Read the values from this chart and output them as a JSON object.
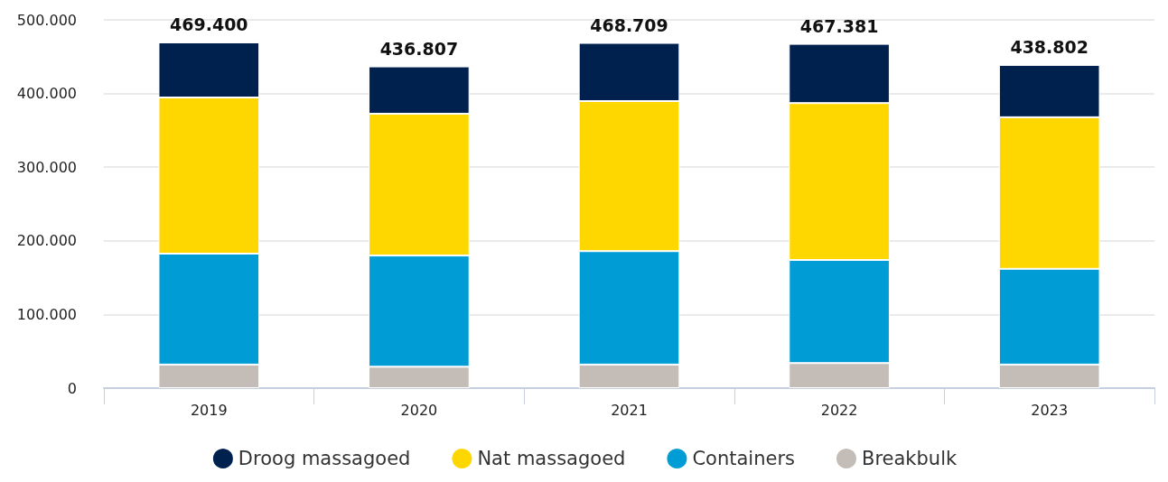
{
  "chart_data": {
    "type": "bar",
    "stacked": true,
    "categories": [
      "2019",
      "2020",
      "2021",
      "2022",
      "2023"
    ],
    "series": [
      {
        "name": "Breakbulk",
        "color": "#c4bdb7",
        "values": [
          32000,
          29000,
          32000,
          34000,
          32000
        ]
      },
      {
        "name": "Containers",
        "color": "#009cd6",
        "values": [
          150600,
          151000,
          154000,
          140000,
          130000
        ]
      },
      {
        "name": "Nat massagoed",
        "color": "#ffd700",
        "values": [
          212000,
          192500,
          203700,
          213000,
          205800
        ]
      },
      {
        "name": "Droog massagoed",
        "color": "#00214e",
        "values": [
          74800,
          64307,
          79009,
          80381,
          71002
        ]
      }
    ],
    "totals": [
      "469.400",
      "436.807",
      "468.709",
      "467.381",
      "438.802"
    ],
    "ylim": [
      0,
      500000
    ],
    "yticks": [
      {
        "value": 0,
        "label": "0"
      },
      {
        "value": 100000,
        "label": "100.000"
      },
      {
        "value": 200000,
        "label": "200.000"
      },
      {
        "value": 300000,
        "label": "300.000"
      },
      {
        "value": 400000,
        "label": "400.000"
      },
      {
        "value": 500000,
        "label": "500.000"
      }
    ],
    "grid": "y",
    "legend": "bottom"
  }
}
